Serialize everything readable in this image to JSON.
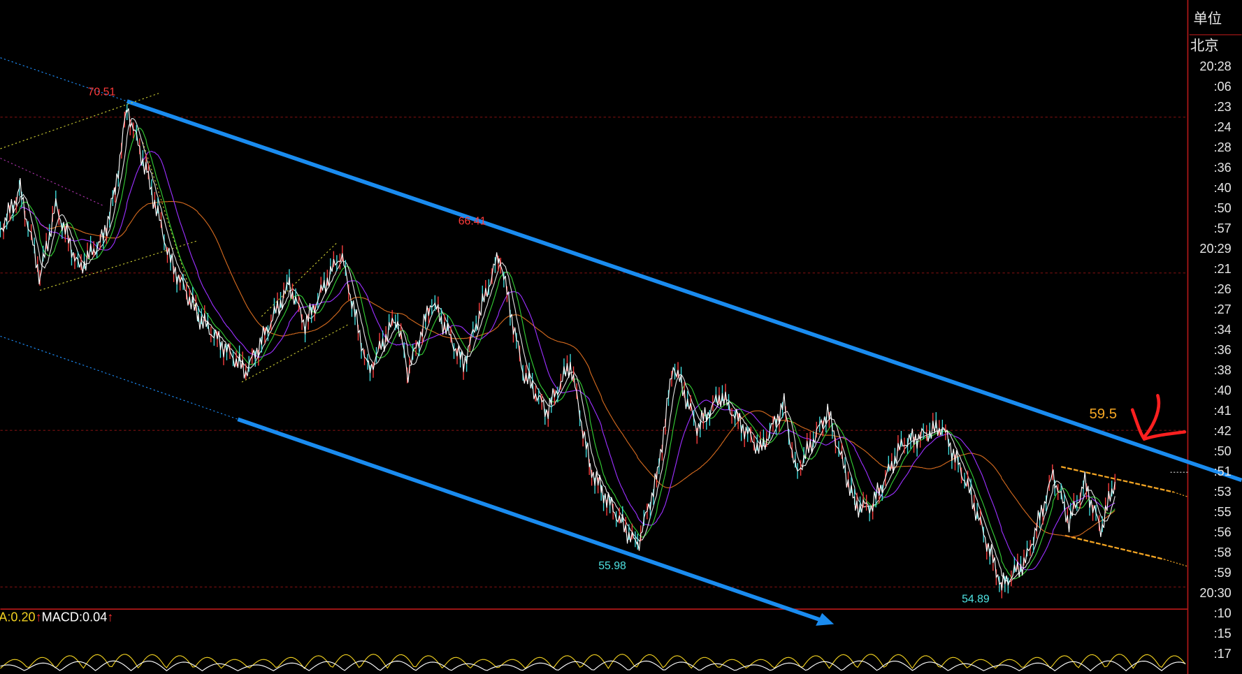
{
  "annotations": [
    "70.51",
    "66.41",
    "55.98",
    "54.89",
    "59.5"
  ],
  "indicator": [
    "A:0.20",
    "↑",
    "MACD:0.04",
    "↑"
  ],
  "axis": {
    "header": "单位",
    "zone": "北京",
    "times": [
      "20:28",
      ":06",
      ":23",
      ":24",
      ":28",
      ":36",
      ":40",
      ":50",
      ":57",
      "20:29",
      ":21",
      ":26",
      ":27",
      ":34",
      ":36",
      ":38",
      ":40",
      ":41",
      ":42",
      ":50",
      ":51",
      ":53",
      ":55",
      ":56",
      ":58",
      ":59",
      "20:30",
      ":10",
      ":15",
      ":17"
    ]
  }
}
